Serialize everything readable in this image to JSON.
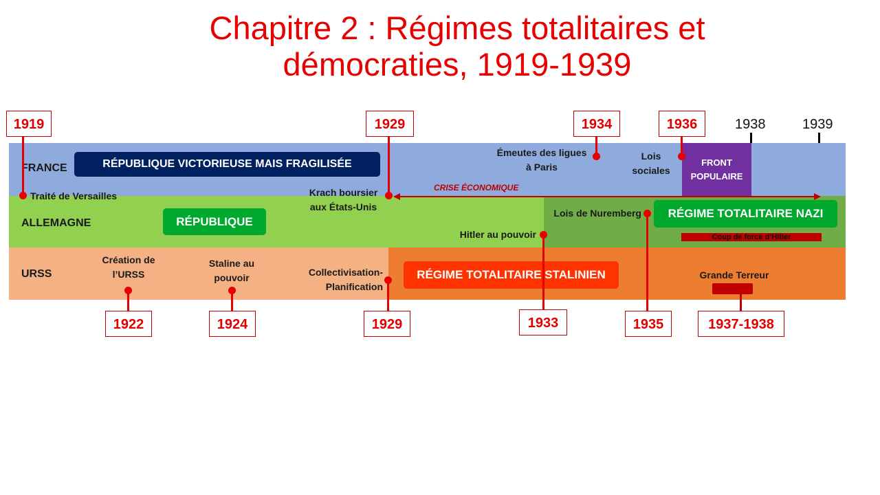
{
  "title": {
    "line1": "Chapitre 2 : Régimes totalitaires et",
    "line2": "démocraties, 1919-1939"
  },
  "colors": {
    "title": "#e60000",
    "france_band": "#8faadc",
    "germany_band": "#92d050",
    "germany_dark": "#70ad47",
    "ussr_band": "#f4b183",
    "ussr_dark": "#ed7d31",
    "front_populaire": "#7030a0",
    "markers": "#e60000"
  },
  "lanes": {
    "france": "FRANCE",
    "germany": "ALLEMAGNE",
    "ussr": "URSS"
  },
  "regimes": {
    "france_republic": "RÉPUBLIQUE VICTORIEUSE  MAIS FRAGILISÉE",
    "germany_republic": "RÉPUBLIQUE",
    "nazi": "RÉGIME TOTALITAIRE NAZI",
    "stalin": "RÉGIME TOTALITAIRE STALINIEN",
    "front_populaire": "FRONT POPULAIRE"
  },
  "crisis_label": "CRISE ÉCONOMIQUE",
  "coup_label": "Coup de force d’Hitler",
  "events": {
    "versailles": "Traité de Versailles",
    "krach": "Krach boursier aux États-Unis",
    "emeutes": "Émeutes des ligues à Paris",
    "lois_sociales": "Lois sociales",
    "nuremberg": "Lois de Nuremberg",
    "hitler": "Hitler au pouvoir",
    "creation_urss": "Création de l’URSS",
    "staline": "Staline au pouvoir",
    "collectivisation": "Collectivisation-Planification",
    "terreur": "Grande Terreur"
  },
  "years": {
    "y1919": "1919",
    "y1929_top": "1929",
    "y1934": "1934",
    "y1936": "1936",
    "y1938": "1938",
    "y1939": "1939",
    "y1922": "1922",
    "y1924": "1924",
    "y1929_bottom": "1929",
    "y1933": "1933",
    "y1935": "1935",
    "y1937_1938": "1937-1938"
  }
}
